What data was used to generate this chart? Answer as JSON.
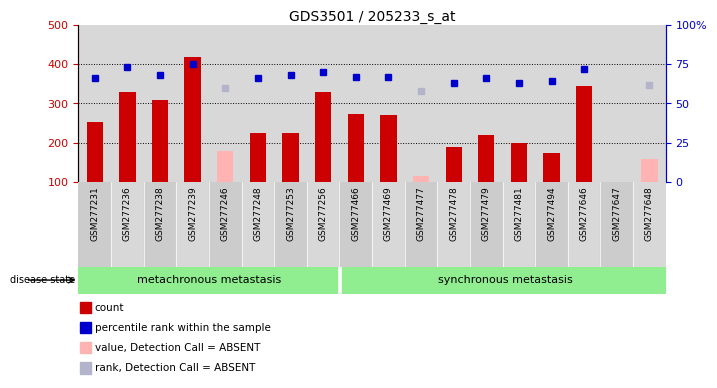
{
  "title": "GDS3501 / 205233_s_at",
  "samples": [
    "GSM277231",
    "GSM277236",
    "GSM277238",
    "GSM277239",
    "GSM277246",
    "GSM277248",
    "GSM277253",
    "GSM277256",
    "GSM277466",
    "GSM277469",
    "GSM277477",
    "GSM277478",
    "GSM277479",
    "GSM277481",
    "GSM277494",
    "GSM277646",
    "GSM277647",
    "GSM277648"
  ],
  "bar_values": [
    253,
    330,
    308,
    418,
    null,
    224,
    224,
    330,
    272,
    270,
    null,
    190,
    220,
    200,
    174,
    345,
    null,
    null
  ],
  "bar_absent": [
    null,
    null,
    null,
    null,
    180,
    null,
    null,
    null,
    null,
    null,
    115,
    null,
    null,
    null,
    null,
    null,
    null,
    160
  ],
  "rank_values": [
    66,
    73,
    68,
    75,
    null,
    66,
    68,
    70,
    67,
    67,
    null,
    63,
    66,
    63,
    64,
    72,
    null,
    null
  ],
  "rank_absent": [
    null,
    null,
    null,
    null,
    60,
    null,
    null,
    null,
    null,
    null,
    58,
    null,
    null,
    null,
    null,
    null,
    null,
    62
  ],
  "meta_count": 8,
  "sync_count": 10,
  "ylim_left": [
    100,
    500
  ],
  "ylim_right": [
    0,
    100
  ],
  "yticks_left": [
    100,
    200,
    300,
    400,
    500
  ],
  "yticks_right": [
    0,
    25,
    50,
    75,
    100
  ],
  "ytick_right_labels": [
    "0",
    "25",
    "50",
    "75",
    "100%"
  ],
  "bar_color": "#cc0000",
  "bar_absent_color": "#ffb3b3",
  "rank_color": "#0000cc",
  "rank_absent_color": "#b3b3cc",
  "plot_bg": "#d8d8d8",
  "group_color": "#90ee90",
  "label_bg": "#c8c8c8",
  "hgrid_values": [
    200,
    300,
    400
  ],
  "bar_width": 0.5,
  "legend_items": [
    "count",
    "percentile rank within the sample",
    "value, Detection Call = ABSENT",
    "rank, Detection Call = ABSENT"
  ],
  "legend_colors": [
    "#cc0000",
    "#0000cc",
    "#ffb3b3",
    "#b3b3cc"
  ]
}
